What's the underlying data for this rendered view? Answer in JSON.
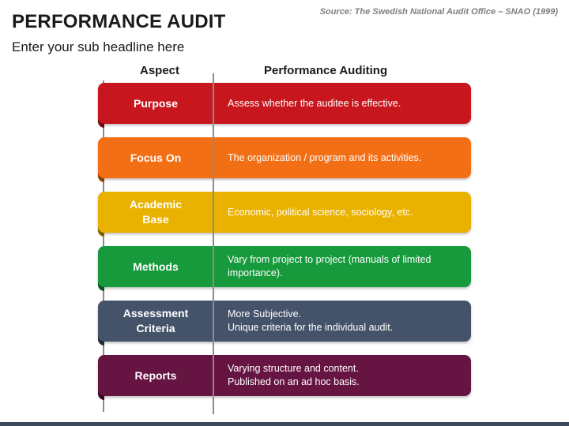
{
  "header": {
    "title": "PERFORMANCE AUDIT",
    "subtitle": "Enter your sub headline here",
    "source": "Source: The Swedish National Audit Office – SNAO (1999)"
  },
  "columns": {
    "aspect": "Aspect",
    "performance": "Performance Auditing"
  },
  "rows": [
    {
      "aspect": "Purpose",
      "text": "Assess whether the auditee is effective.",
      "color": "#c8161e",
      "fold": "#7a0e12"
    },
    {
      "aspect": "Focus On",
      "text": "The organization / program and its activities.",
      "color": "#f36f16",
      "fold": "#9a440a"
    },
    {
      "aspect": "Academic\nBase",
      "text": "Economic, political science, sociology, etc.",
      "color": "#e9b100",
      "fold": "#8f6c00"
    },
    {
      "aspect": "Methods",
      "text": "Vary from project to project (manuals of limited\nimportance).",
      "color": "#179a3c",
      "fold": "#0d5e24"
    },
    {
      "aspect": "Assessment\nCriteria",
      "text": "More Subjective.\nUnique criteria for the individual audit.",
      "color": "#44536a",
      "fold": "#27303e"
    },
    {
      "aspect": "Reports",
      "text": "Varying structure and content.\nPublished on an ad hoc basis.",
      "color": "#661441",
      "fold": "#3c0b26"
    }
  ]
}
